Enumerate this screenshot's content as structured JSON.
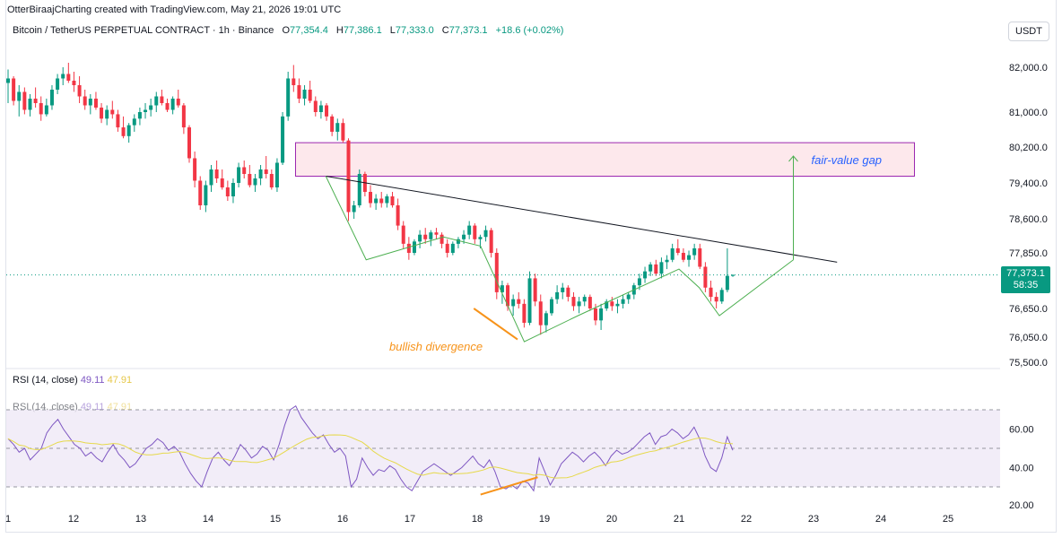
{
  "credit": "OtterBiraajCharting created with TradingView.com, May 21, 2026 19:01 UTC",
  "symbol": "Bitcoin / TetherUS PERPETUAL CONTRACT · 1h · Binance",
  "ohlc": {
    "o_label": "O",
    "o": "77,354.4",
    "h_label": "H",
    "h": "77,386.1",
    "l_label": "L",
    "l": "77,333.0",
    "c_label": "C",
    "c": "77,373.1",
    "change": "+18.6 (+0.02%)"
  },
  "currency_button": "USDT",
  "last_price": {
    "value": "77,373.1",
    "countdown": "58:35"
  },
  "annotations": {
    "fvg": "fair-value gap",
    "divergence": "bullish divergence"
  },
  "rsi": {
    "title": "RSI (14, close)",
    "value1": "49.11",
    "value2": "47.91"
  },
  "colors": {
    "up": "#089981",
    "down": "#f23645",
    "rsi": "#7e57c2",
    "rsi_ma": "#e6d94a",
    "fvg_fill": "#fde8ec",
    "fvg_border": "#9c27b0",
    "pattern": "#4caf50",
    "divergence": "#f7931a",
    "label_blue": "#2962ff"
  },
  "chart_data": {
    "type": "candlestick",
    "price_axis_ticks": [
      82000,
      81000,
      80200,
      79400,
      78600,
      77850,
      76650,
      76050,
      75500
    ],
    "price_axis_labels": [
      "82,000.0",
      "81,000.0",
      "80,200.0",
      "79,400.0",
      "78,600.0",
      "77,850.0",
      "76,650.0",
      "76,050.0",
      "75,500.0"
    ],
    "rsi_axis_labels": [
      "60.00",
      "40.00",
      "20.00"
    ],
    "rsi_axis_values": [
      60,
      40,
      20
    ],
    "rsi_band": [
      30,
      70
    ],
    "x_axis_labels": [
      "1",
      "12",
      "13",
      "14",
      "15",
      "16",
      "17",
      "18",
      "19",
      "20",
      "21",
      "22",
      "23",
      "24",
      "25"
    ],
    "x_axis_day_index": [
      11,
      12,
      13,
      14,
      15,
      16,
      17,
      18,
      19,
      20,
      21,
      22,
      23,
      24,
      25
    ],
    "fair_value_gap": {
      "top": 80300,
      "bottom": 79550,
      "from_day": 15.3,
      "to_day": 24.5
    },
    "trendline": [
      {
        "day": 15.75,
        "price": 79550
      },
      {
        "day": 23.35,
        "price": 77650
      }
    ],
    "pattern_path": [
      {
        "day": 15.75,
        "price": 79550
      },
      {
        "day": 16.35,
        "price": 77700
      },
      {
        "day": 17.5,
        "price": 78200
      },
      {
        "day": 18.05,
        "price": 78000
      },
      {
        "day": 18.7,
        "price": 75950
      },
      {
        "day": 19.5,
        "price": 76500
      },
      {
        "day": 21.0,
        "price": 77500
      },
      {
        "day": 21.3,
        "price": 77100
      },
      {
        "day": 21.6,
        "price": 76500
      },
      {
        "day": 22.7,
        "price": 77700
      }
    ],
    "target_arrow": [
      {
        "day": 22.7,
        "price": 77700
      },
      {
        "day": 22.7,
        "price": 80000
      }
    ],
    "divergence_price": [
      {
        "day": 17.95,
        "price": 76650
      },
      {
        "day": 18.6,
        "price": 76000
      }
    ],
    "divergence_rsi": [
      {
        "day": 18.05,
        "value": 26
      },
      {
        "day": 18.9,
        "value": 35
      }
    ],
    "candles": [
      [
        81650,
        81950,
        81200,
        81750
      ],
      [
        81750,
        81800,
        81150,
        81250
      ],
      [
        81250,
        81600,
        80900,
        81450
      ],
      [
        81450,
        81550,
        80950,
        81050
      ],
      [
        81050,
        81400,
        80900,
        81300
      ],
      [
        81300,
        81550,
        81100,
        81200
      ],
      [
        81200,
        81350,
        80800,
        80950
      ],
      [
        80950,
        81300,
        80900,
        81150
      ],
      [
        81150,
        81600,
        81050,
        81500
      ],
      [
        81500,
        81850,
        81400,
        81750
      ],
      [
        81750,
        82000,
        81600,
        81850
      ],
      [
        81850,
        82100,
        81650,
        81700
      ],
      [
        81700,
        81900,
        81450,
        81600
      ],
      [
        81600,
        81800,
        81200,
        81350
      ],
      [
        81350,
        81500,
        81050,
        81150
      ],
      [
        81150,
        81400,
        80950,
        81300
      ],
      [
        81300,
        81450,
        81050,
        81100
      ],
      [
        81100,
        81200,
        80750,
        80850
      ],
      [
        80850,
        81150,
        80700,
        81050
      ],
      [
        81050,
        81250,
        80850,
        80950
      ],
      [
        80950,
        81050,
        80550,
        80650
      ],
      [
        80650,
        80900,
        80400,
        80450
      ],
      [
        80450,
        80750,
        80300,
        80700
      ],
      [
        80700,
        80950,
        80550,
        80850
      ],
      [
        80850,
        81100,
        80700,
        81000
      ],
      [
        81000,
        81200,
        80850,
        81050
      ],
      [
        81050,
        81300,
        80900,
        81150
      ],
      [
        81150,
        81450,
        81000,
        81350
      ],
      [
        81350,
        81500,
        81150,
        81200
      ],
      [
        81200,
        81300,
        81000,
        81050
      ],
      [
        81050,
        81350,
        80950,
        81300
      ],
      [
        81300,
        81500,
        81100,
        81150
      ],
      [
        81150,
        81200,
        80500,
        80650
      ],
      [
        80650,
        80700,
        79850,
        79950
      ],
      [
        79950,
        80100,
        79300,
        79450
      ],
      [
        79450,
        79550,
        78800,
        78900
      ],
      [
        78900,
        79450,
        78750,
        79350
      ],
      [
        79350,
        79800,
        79200,
        79700
      ],
      [
        79700,
        79900,
        79400,
        79500
      ],
      [
        79500,
        79700,
        79250,
        79300
      ],
      [
        79300,
        79450,
        79000,
        79100
      ],
      [
        79100,
        79500,
        78950,
        79400
      ],
      [
        79400,
        79850,
        79300,
        79750
      ],
      [
        79750,
        79900,
        79500,
        79600
      ],
      [
        79600,
        79800,
        79300,
        79350
      ],
      [
        79350,
        79600,
        79200,
        79500
      ],
      [
        79500,
        79800,
        79350,
        79700
      ],
      [
        79700,
        80000,
        79500,
        79600
      ],
      [
        79600,
        79700,
        79250,
        79300
      ],
      [
        79300,
        79950,
        79200,
        79850
      ],
      [
        79850,
        81000,
        79800,
        80900
      ],
      [
        80900,
        81900,
        80800,
        81750
      ],
      [
        81750,
        82050,
        81450,
        81600
      ],
      [
        81600,
        81750,
        81200,
        81300
      ],
      [
        81300,
        81600,
        81150,
        81500
      ],
      [
        81500,
        81700,
        81200,
        81250
      ],
      [
        81250,
        81350,
        80900,
        81000
      ],
      [
        81000,
        81250,
        80850,
        81150
      ],
      [
        81150,
        81200,
        80800,
        80900
      ],
      [
        80900,
        80950,
        80450,
        80550
      ],
      [
        80550,
        80850,
        80350,
        80750
      ],
      [
        80750,
        80850,
        80300,
        80350
      ],
      [
        80350,
        80400,
        78550,
        78750
      ],
      [
        78750,
        79000,
        78600,
        78900
      ],
      [
        78900,
        79700,
        78850,
        79600
      ],
      [
        79600,
        79650,
        79100,
        79200
      ],
      [
        79200,
        79350,
        78850,
        78950
      ],
      [
        78950,
        79150,
        78800,
        79050
      ],
      [
        79050,
        79200,
        78850,
        78950
      ],
      [
        78950,
        79150,
        78850,
        79100
      ],
      [
        79100,
        79200,
        78850,
        78900
      ],
      [
        78900,
        79050,
        78350,
        78450
      ],
      [
        78450,
        78550,
        77950,
        78050
      ],
      [
        78050,
        78200,
        77700,
        77850
      ],
      [
        77850,
        78150,
        77800,
        78100
      ],
      [
        78100,
        78350,
        77950,
        78250
      ],
      [
        78250,
        78400,
        78050,
        78150
      ],
      [
        78150,
        78350,
        78000,
        78300
      ],
      [
        78300,
        78400,
        78150,
        78250
      ],
      [
        78250,
        78300,
        77950,
        78050
      ],
      [
        78050,
        78150,
        77750,
        77850
      ],
      [
        77850,
        78100,
        77800,
        78050
      ],
      [
        78050,
        78200,
        77950,
        78150
      ],
      [
        78150,
        78350,
        78050,
        78250
      ],
      [
        78250,
        78550,
        78150,
        78450
      ],
      [
        78450,
        78500,
        78050,
        78150
      ],
      [
        78150,
        78250,
        77950,
        78200
      ],
      [
        78200,
        78450,
        78100,
        78350
      ],
      [
        78350,
        78400,
        77750,
        77850
      ],
      [
        77850,
        77950,
        76850,
        77000
      ],
      [
        77000,
        77250,
        76750,
        77150
      ],
      [
        77150,
        77200,
        76600,
        76700
      ],
      [
        76700,
        76950,
        76500,
        76850
      ],
      [
        76850,
        77000,
        76650,
        76750
      ],
      [
        76750,
        76850,
        76250,
        76350
      ],
      [
        76350,
        77450,
        76300,
        77300
      ],
      [
        77300,
        77400,
        76700,
        76800
      ],
      [
        76800,
        76950,
        76100,
        76300
      ],
      [
        76300,
        76600,
        76150,
        76550
      ],
      [
        76550,
        76900,
        76500,
        76850
      ],
      [
        76850,
        77150,
        76750,
        77000
      ],
      [
        77000,
        77200,
        76850,
        77100
      ],
      [
        77100,
        77150,
        76800,
        76900
      ],
      [
        76900,
        77000,
        76600,
        76700
      ],
      [
        76700,
        76900,
        76550,
        76800
      ],
      [
        76800,
        76950,
        76700,
        76900
      ],
      [
        76900,
        76950,
        76600,
        76650
      ],
      [
        76650,
        76750,
        76300,
        76400
      ],
      [
        76400,
        76750,
        76200,
        76650
      ],
      [
        76650,
        76850,
        76600,
        76800
      ],
      [
        76800,
        76900,
        76600,
        76700
      ],
      [
        76700,
        76850,
        76550,
        76750
      ],
      [
        76750,
        76950,
        76650,
        76850
      ],
      [
        76850,
        77000,
        76750,
        76950
      ],
      [
        76950,
        77200,
        76850,
        77150
      ],
      [
        77150,
        77400,
        77050,
        77300
      ],
      [
        77300,
        77550,
        77200,
        77450
      ],
      [
        77450,
        77650,
        77350,
        77600
      ],
      [
        77600,
        77700,
        77350,
        77400
      ],
      [
        77400,
        77750,
        77300,
        77650
      ],
      [
        77650,
        77800,
        77500,
        77700
      ],
      [
        77700,
        78050,
        77650,
        77950
      ],
      [
        77950,
        78150,
        77800,
        77850
      ],
      [
        77850,
        77950,
        77650,
        77700
      ],
      [
        77700,
        77900,
        77550,
        77800
      ],
      [
        77800,
        78050,
        77700,
        77950
      ],
      [
        77950,
        78050,
        77500,
        77550
      ],
      [
        77550,
        77650,
        77000,
        77100
      ],
      [
        77100,
        77250,
        76800,
        76900
      ],
      [
        76900,
        77000,
        76650,
        76800
      ],
      [
        76800,
        77100,
        76750,
        77050
      ],
      [
        77050,
        77950,
        77000,
        77354
      ],
      [
        77354,
        77386,
        77333,
        77373
      ]
    ],
    "rsi_values": [
      55,
      52,
      48,
      50,
      44,
      47,
      50,
      58,
      62,
      65,
      60,
      56,
      52,
      50,
      46,
      48,
      45,
      43,
      48,
      52,
      47,
      44,
      40,
      42,
      46,
      50,
      52,
      55,
      53,
      49,
      51,
      48,
      42,
      37,
      33,
      30,
      38,
      45,
      48,
      44,
      41,
      46,
      52,
      49,
      45,
      47,
      51,
      49,
      44,
      52,
      62,
      70,
      72,
      66,
      62,
      58,
      55,
      57,
      52,
      48,
      50,
      46,
      30,
      34,
      45,
      40,
      36,
      39,
      38,
      41,
      39,
      34,
      30,
      28,
      33,
      38,
      40,
      42,
      40,
      38,
      36,
      38,
      40,
      43,
      46,
      42,
      40,
      44,
      38,
      30,
      29,
      31,
      29,
      33,
      32,
      28,
      45,
      38,
      31,
      36,
      42,
      45,
      48,
      46,
      43,
      46,
      48,
      45,
      41,
      46,
      49,
      47,
      48,
      50,
      53,
      56,
      58,
      52,
      56,
      57,
      60,
      58,
      55,
      57,
      61,
      55,
      46,
      40,
      38,
      45,
      56,
      49
    ]
  }
}
